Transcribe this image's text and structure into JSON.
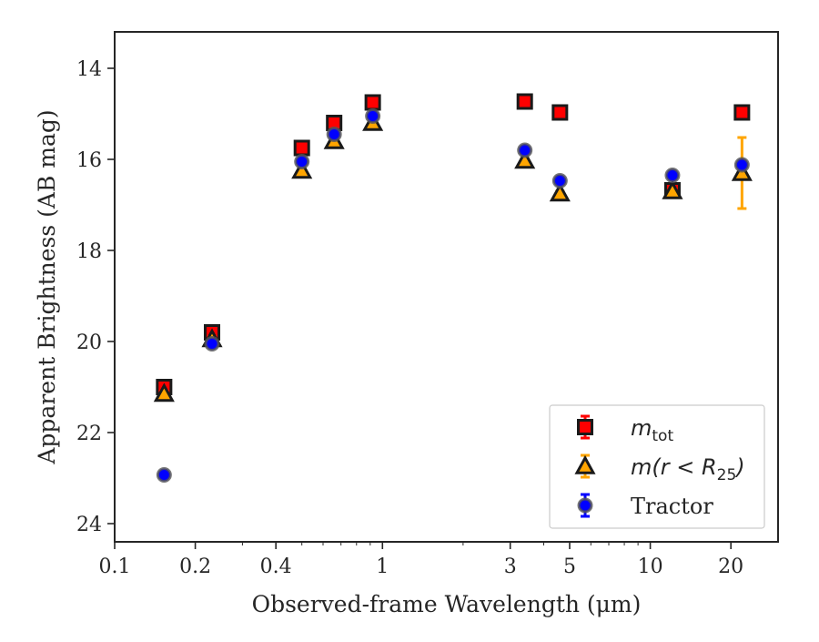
{
  "chart_data": {
    "type": "scatter",
    "xlabel": "Observed-frame Wavelength (μm)",
    "ylabel": "Apparent Brightness (AB mag)",
    "x_scale": "log",
    "xlim": [
      0.1,
      30
    ],
    "ylim": [
      24.4,
      13.2
    ],
    "y_inverted": true,
    "x_ticks": [
      {
        "value": 0.1,
        "label": "0.1"
      },
      {
        "value": 0.2,
        "label": "0.2"
      },
      {
        "value": 0.4,
        "label": "0.4"
      },
      {
        "value": 1,
        "label": "1"
      },
      {
        "value": 3,
        "label": "3"
      },
      {
        "value": 5,
        "label": "5"
      },
      {
        "value": 10,
        "label": "10"
      },
      {
        "value": 20,
        "label": "20"
      }
    ],
    "y_ticks": [
      {
        "value": 14,
        "label": "14"
      },
      {
        "value": 16,
        "label": "16"
      },
      {
        "value": 18,
        "label": "18"
      },
      {
        "value": 20,
        "label": "20"
      },
      {
        "value": 22,
        "label": "22"
      },
      {
        "value": 24,
        "label": "24"
      }
    ],
    "grid": false,
    "legend_position": "lower-right",
    "series": [
      {
        "name": "m_tot",
        "marker": "square",
        "color": "#ff0000",
        "edge_color": "#1a1a1a",
        "error_color": "#ff0000",
        "points": [
          {
            "x": 0.153,
            "y": 21.0,
            "err": 0.1
          },
          {
            "x": 0.231,
            "y": 19.8,
            "err": 0.1
          },
          {
            "x": 0.5,
            "y": 15.75,
            "err": 0.05
          },
          {
            "x": 0.66,
            "y": 15.2,
            "err": 0.05
          },
          {
            "x": 0.92,
            "y": 14.75,
            "err": 0.05
          },
          {
            "x": 3.4,
            "y": 14.73,
            "err": 0.05
          },
          {
            "x": 4.6,
            "y": 14.97,
            "err": 0.05
          },
          {
            "x": 12.1,
            "y": 16.68,
            "err": 0.05
          },
          {
            "x": 22.0,
            "y": 14.97,
            "err": 0.05
          }
        ]
      },
      {
        "name": "m(r<R25)",
        "marker": "triangle",
        "color": "#ffa500",
        "edge_color": "#1a1a1a",
        "error_color": "#ffa500",
        "points": [
          {
            "x": 0.153,
            "y": 21.15,
            "err": 0.05
          },
          {
            "x": 0.231,
            "y": 19.95,
            "err": 0.05
          },
          {
            "x": 0.5,
            "y": 16.25,
            "err": 0.05
          },
          {
            "x": 0.66,
            "y": 15.6,
            "err": 0.05
          },
          {
            "x": 0.92,
            "y": 15.2,
            "err": 0.05
          },
          {
            "x": 3.4,
            "y": 16.03,
            "err": 0.05
          },
          {
            "x": 4.6,
            "y": 16.75,
            "err": 0.05
          },
          {
            "x": 12.1,
            "y": 16.7,
            "err": 0.05
          },
          {
            "x": 22.0,
            "y": 16.3,
            "err": 0.78
          }
        ]
      },
      {
        "name": "Tractor",
        "marker": "circle",
        "color": "#0000ff",
        "edge_color": "#555555",
        "error_color": "#0000ff",
        "points": [
          {
            "x": 0.153,
            "y": 22.93,
            "err": 0.05
          },
          {
            "x": 0.231,
            "y": 20.05,
            "err": 0.05
          },
          {
            "x": 0.5,
            "y": 16.05,
            "err": 0.05
          },
          {
            "x": 0.66,
            "y": 15.45,
            "err": 0.05
          },
          {
            "x": 0.92,
            "y": 15.05,
            "err": 0.05
          },
          {
            "x": 3.4,
            "y": 15.8,
            "err": 0.05
          },
          {
            "x": 4.6,
            "y": 16.47,
            "err": 0.05
          },
          {
            "x": 12.1,
            "y": 16.35,
            "err": 0.05
          },
          {
            "x": 22.0,
            "y": 16.12,
            "err": 0.05
          }
        ]
      }
    ],
    "legend": [
      {
        "series": "m_tot",
        "base": "m",
        "sub": "tot",
        "rest": "",
        "italic": true
      },
      {
        "series": "m(r<R25)",
        "base": "m(r < R",
        "sub": "25",
        "rest": ")",
        "italic": true
      },
      {
        "series": "Tractor",
        "base": "Tractor",
        "sub": "",
        "rest": "",
        "italic": false
      }
    ]
  }
}
